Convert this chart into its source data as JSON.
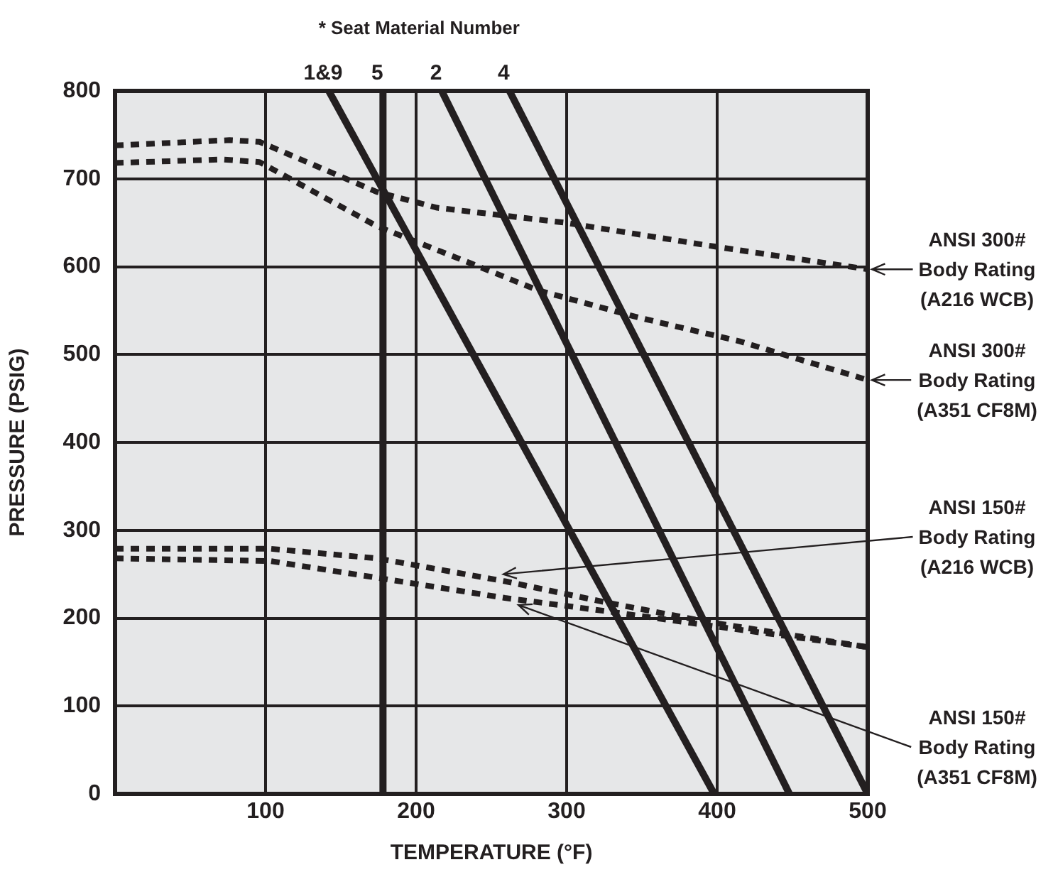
{
  "chart_data": {
    "type": "line",
    "title": "* Seat Material Number",
    "xlabel": "TEMPERATURE (°F)",
    "ylabel": "PRESSURE (PSIG)",
    "xlim": [
      0,
      500
    ],
    "ylim": [
      0,
      800
    ],
    "xticks": [
      {
        "value": 0,
        "label": null
      },
      100,
      200,
      300,
      400,
      500
    ],
    "yticks": [
      0,
      100,
      200,
      300,
      400,
      500,
      600,
      700,
      800
    ],
    "grid": true,
    "legend": false,
    "marker": "none",
    "series": [
      {
        "name": "1&9",
        "color": "#231f20",
        "line_style": "solid",
        "x": [
          142,
          398
        ],
        "values": [
          800,
          0
        ]
      },
      {
        "name": "5",
        "color": "#231f20",
        "line_style": "solid",
        "x": [
          178,
          178
        ],
        "values": [
          800,
          0
        ]
      },
      {
        "name": "2",
        "color": "#231f20",
        "line_style": "solid",
        "x": [
          217,
          448
        ],
        "values": [
          800,
          0
        ]
      },
      {
        "name": "4",
        "color": "#231f20",
        "line_style": "solid",
        "x": [
          262,
          500
        ],
        "values": [
          800,
          0
        ]
      },
      {
        "color": "#231f20",
        "line_style": "dashed",
        "x": [
          0,
          76,
          96,
          174,
          214,
          299,
          398,
          500
        ],
        "values": [
          738,
          744,
          742,
          685,
          667,
          650,
          623,
          597
        ]
      },
      {
        "color": "#231f20",
        "line_style": "dashed",
        "x": [
          0,
          71,
          96,
          174,
          236,
          281,
          348,
          415,
          500
        ],
        "values": [
          718,
          722,
          719,
          646,
          604,
          573,
          542,
          515,
          471
        ]
      },
      {
        "color": "#231f20",
        "line_style": "dashed",
        "x": [
          0,
          103,
          174,
          259,
          326,
          393,
          500
        ],
        "values": [
          279,
          279,
          268,
          242,
          218,
          196,
          167
        ]
      },
      {
        "color": "#231f20",
        "line_style": "dashed",
        "x": [
          0,
          103,
          174,
          259,
          326,
          393,
          500
        ],
        "values": [
          268,
          265,
          246,
          223,
          208,
          192,
          167
        ]
      }
    ],
    "annotations": [
      {
        "text": "ANSI 300#\nBody Rating\n(A216 WCB)",
        "x": 500,
        "y": 597
      },
      {
        "text": "ANSI 300#\nBody Rating\n(A351 CF8M)",
        "x": 500,
        "y": 471
      },
      {
        "text": "ANSI 150#\nBody Rating\n(A216 WCB)",
        "x": 258,
        "y": 250
      },
      {
        "text": "ANSI 150#\nBody Rating\n(A351 CF8M)",
        "x": 268,
        "y": 215
      }
    ]
  }
}
